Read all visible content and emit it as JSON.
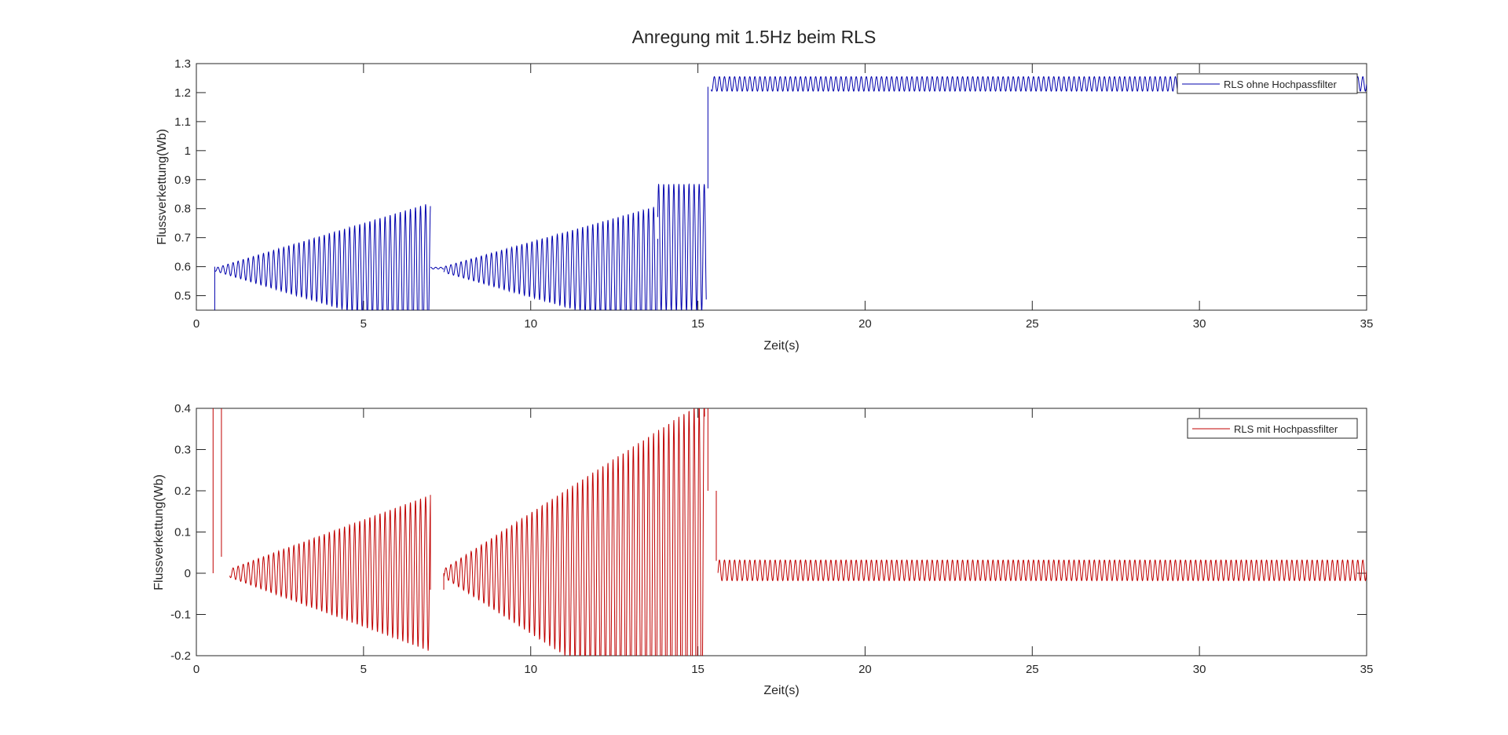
{
  "figure": {
    "title": "Anregung mit 1.5Hz beim RLS"
  },
  "chart_data": [
    {
      "type": "line",
      "xlabel": "Zeit(s)",
      "ylabel": "Flussverkettung(Wb)",
      "xlim": [
        0,
        35
      ],
      "ylim": [
        0.45,
        1.3
      ],
      "xticks": [
        0,
        5,
        10,
        15,
        20,
        25,
        30,
        35
      ],
      "yticks": [
        0.5,
        0.6,
        0.7,
        0.8,
        0.9,
        1,
        1.1,
        1.2,
        1.3
      ],
      "xtick_labels": [
        "0",
        "5",
        "10",
        "15",
        "20",
        "25",
        "30",
        "35"
      ],
      "ytick_labels": [
        "0.5",
        "0.6",
        "0.7",
        "0.8",
        "0.9",
        "1",
        "1.1",
        "1.2",
        "1.3"
      ],
      "grid": false,
      "legend_position": "top-right",
      "series": [
        {
          "name": "RLS ohne Hochpassfilter",
          "color": "#0000ad",
          "excitation_frequency_hz": 1.5,
          "segments": [
            {
              "t_start": 0.55,
              "t_end": 7.0,
              "center": 0.59,
              "amp_start": 0.005,
              "amp_end": 0.23
            },
            {
              "t_start": 7.0,
              "t_end": 7.4,
              "center": 0.595,
              "amp_start": 0.003,
              "amp_end": 0.003
            },
            {
              "t_start": 7.4,
              "t_end": 13.8,
              "center": 0.59,
              "amp_start": 0.01,
              "amp_end": 0.22
            },
            {
              "t_start": 13.8,
              "t_end": 15.25,
              "center": 0.665,
              "amp_start": 0.22,
              "amp_end": 0.22
            },
            {
              "t_start": 15.4,
              "t_end": 35.0,
              "center": 1.23,
              "amp_start": 0.025,
              "amp_end": 0.025
            }
          ],
          "transients": [
            {
              "t": 0.55,
              "from": 0.45,
              "to": 0.6
            },
            {
              "t": 15.3,
              "from": 0.87,
              "to": 1.22
            }
          ]
        }
      ]
    },
    {
      "type": "line",
      "xlabel": "Zeit(s)",
      "ylabel": "Flussverkettung(Wb)",
      "xlim": [
        0,
        35
      ],
      "ylim": [
        -0.2,
        0.4
      ],
      "xticks": [
        0,
        5,
        10,
        15,
        20,
        25,
        30,
        35
      ],
      "yticks": [
        -0.2,
        -0.1,
        0,
        0.1,
        0.2,
        0.3,
        0.4
      ],
      "xtick_labels": [
        "0",
        "5",
        "10",
        "15",
        "20",
        "25",
        "30",
        "35"
      ],
      "ytick_labels": [
        "-0.2",
        "-0.1",
        "0",
        "0.1",
        "0.2",
        "0.3",
        "0.4"
      ],
      "grid": false,
      "legend_position": "top-right",
      "series": [
        {
          "name": "RLS mit Hochpassfilter",
          "color": "#c00000",
          "excitation_frequency_hz": 1.5,
          "segments": [
            {
              "t_start": 1.0,
              "t_end": 7.0,
              "center": 0.0,
              "amp_start": 0.01,
              "amp_end": 0.19
            },
            {
              "t_start": 7.4,
              "t_end": 15.2,
              "center": 0.0,
              "amp_start": 0.01,
              "amp_end": 0.42
            },
            {
              "t_start": 15.6,
              "t_end": 35.0,
              "center": 0.007,
              "amp_start": 0.025,
              "amp_end": 0.025
            }
          ],
          "transients": [
            {
              "t": 0.5,
              "from": 0.0,
              "to": 0.4
            },
            {
              "t": 0.75,
              "from": 0.4,
              "to": 0.04
            },
            {
              "t": 7.0,
              "from": 0.19,
              "to": -0.04
            },
            {
              "t": 7.4,
              "from": -0.04,
              "to": 0.0
            },
            {
              "t": 15.3,
              "from": 0.4,
              "to": 0.2
            },
            {
              "t": 15.55,
              "from": 0.2,
              "to": 0.03
            }
          ]
        }
      ]
    }
  ]
}
